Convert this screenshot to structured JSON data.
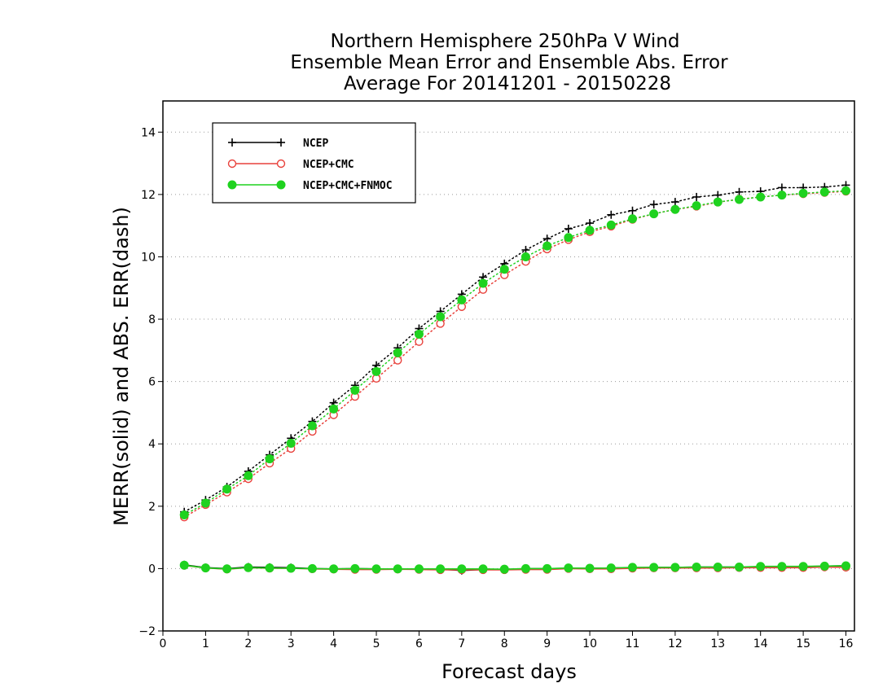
{
  "chart_data": {
    "type": "line",
    "title_lines": [
      "Northern Hemisphere 250hPa V Wind",
      "Ensemble Mean Error and Ensemble Abs. Error",
      "Average For 20141201 - 20150228"
    ],
    "xlabel": "Forecast days",
    "ylabel": "MERR(solid) and ABS. ERR(dash)",
    "xlim": [
      0,
      16.2
    ],
    "ylim": [
      -2,
      15
    ],
    "xticks": [
      0,
      1,
      2,
      3,
      4,
      5,
      6,
      7,
      8,
      9,
      10,
      11,
      12,
      13,
      14,
      15,
      16
    ],
    "yticks": [
      -2,
      0,
      2,
      4,
      6,
      8,
      10,
      12,
      14
    ],
    "grid": "dotted horizontal",
    "legend_position": "top-left",
    "x": [
      0.5,
      1,
      1.5,
      2,
      2.5,
      3,
      3.5,
      4,
      4.5,
      5,
      5.5,
      6,
      6.5,
      7,
      7.5,
      8,
      8.5,
      9,
      9.5,
      10,
      10.5,
      11,
      11.5,
      12,
      12.5,
      13,
      13.5,
      14,
      14.5,
      15,
      15.5,
      16
    ],
    "series": [
      {
        "name": "NCEP",
        "color": "#000000",
        "marker": "plus",
        "abs_error": [
          1.82,
          2.2,
          2.62,
          3.12,
          3.65,
          4.18,
          4.72,
          5.32,
          5.88,
          6.52,
          7.08,
          7.7,
          8.25,
          8.8,
          9.35,
          9.78,
          10.22,
          10.58,
          10.9,
          11.08,
          11.35,
          11.48,
          11.68,
          11.76,
          11.92,
          11.98,
          12.08,
          12.1,
          12.22,
          12.22,
          12.24,
          12.3
        ],
        "mean_error": [
          0.12,
          0.03,
          0.0,
          0.05,
          0.04,
          0.03,
          0.0,
          -0.01,
          0.0,
          -0.01,
          -0.01,
          -0.01,
          -0.02,
          -0.06,
          -0.03,
          -0.03,
          0.0,
          0.0,
          0.01,
          0.01,
          0.02,
          0.03,
          0.04,
          0.04,
          0.05,
          0.05,
          0.05,
          0.06,
          0.06,
          0.06,
          0.08,
          0.09
        ]
      },
      {
        "name": "NCEP+CMC",
        "color": "#e8413b",
        "marker": "open-circle",
        "abs_error": [
          1.65,
          2.05,
          2.45,
          2.88,
          3.38,
          3.85,
          4.4,
          4.93,
          5.52,
          6.1,
          6.68,
          7.28,
          7.86,
          8.4,
          8.95,
          9.42,
          9.85,
          10.25,
          10.55,
          10.8,
          10.98,
          11.2,
          11.38,
          11.52,
          11.62,
          11.75,
          11.85,
          11.92,
          11.98,
          12.02,
          12.06,
          12.1
        ],
        "mean_error": [
          0.1,
          0.02,
          -0.02,
          0.03,
          0.01,
          0.01,
          -0.01,
          -0.02,
          -0.03,
          -0.03,
          -0.02,
          -0.03,
          -0.04,
          -0.04,
          -0.04,
          -0.04,
          -0.03,
          -0.03,
          0.0,
          -0.01,
          -0.01,
          0.01,
          0.02,
          0.02,
          0.02,
          0.02,
          0.03,
          0.03,
          0.03,
          0.03,
          0.05,
          0.04
        ]
      },
      {
        "name": "NCEP+CMC+FNMOC",
        "color": "#1fd21f",
        "marker": "filled-circle",
        "abs_error": [
          1.72,
          2.1,
          2.55,
          2.98,
          3.52,
          4.02,
          4.58,
          5.12,
          5.72,
          6.32,
          6.92,
          7.52,
          8.08,
          8.62,
          9.15,
          9.6,
          10.0,
          10.35,
          10.62,
          10.85,
          11.02,
          11.22,
          11.38,
          11.52,
          11.64,
          11.76,
          11.84,
          11.92,
          11.98,
          12.04,
          12.08,
          12.12
        ],
        "mean_error": [
          0.11,
          0.02,
          -0.01,
          0.03,
          0.02,
          0.01,
          0.0,
          -0.01,
          0.0,
          -0.01,
          -0.01,
          -0.01,
          -0.01,
          -0.01,
          -0.01,
          -0.02,
          0.0,
          0.0,
          0.02,
          0.01,
          0.02,
          0.04,
          0.04,
          0.04,
          0.05,
          0.05,
          0.05,
          0.07,
          0.07,
          0.07,
          0.08,
          0.09
        ]
      }
    ]
  }
}
